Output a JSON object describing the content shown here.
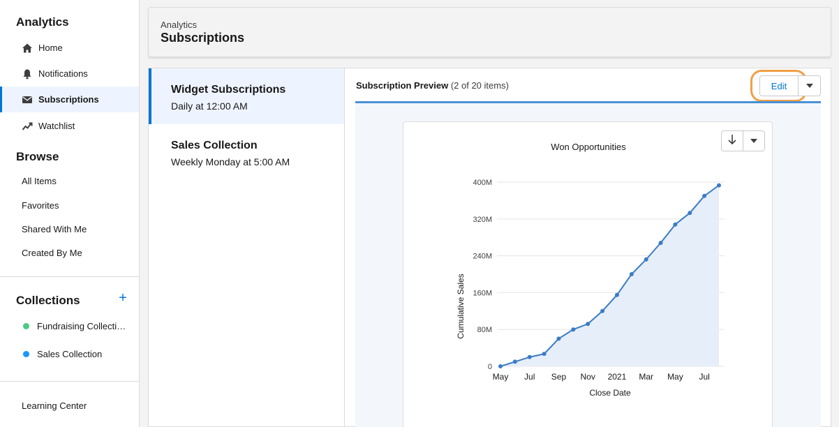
{
  "sidebar": {
    "analytics_title": "Analytics",
    "nav": [
      {
        "label": "Home",
        "icon": "home-icon"
      },
      {
        "label": "Notifications",
        "icon": "bell-icon"
      },
      {
        "label": "Subscriptions",
        "icon": "envelope-icon",
        "active": true
      },
      {
        "label": "Watchlist",
        "icon": "trend-icon"
      }
    ],
    "browse_title": "Browse",
    "browse": [
      "All Items",
      "Favorites",
      "Shared With Me",
      "Created By Me"
    ],
    "collections_title": "Collections",
    "collections": [
      {
        "label": "Fundraising Collecti…",
        "color": "#4bca81"
      },
      {
        "label": "Sales Collection",
        "color": "#1b96ff"
      }
    ],
    "learning_center": "Learning Center"
  },
  "header": {
    "breadcrumb": "Analytics",
    "title": "Subscriptions"
  },
  "subscriptions": [
    {
      "name": "Widget Subscriptions",
      "schedule": "Daily at 12:00 AM"
    },
    {
      "name": "Sales Collection",
      "schedule": "Weekly Monday at 5:00 AM"
    }
  ],
  "preview": {
    "title": "Subscription Preview",
    "count": "(2 of 20 items)",
    "edit_label": "Edit"
  },
  "colors": {
    "accent": "#0176d3",
    "highlight_ring": "#f0a045",
    "line": "#3a7cc4",
    "area": "#e6eefa"
  },
  "chart_data": {
    "type": "area",
    "title": "Won Opportunities",
    "xlabel": "Close Date",
    "ylabel": "Cumulative Sales",
    "x_ticks": [
      "May",
      "Jul",
      "Sep",
      "Nov",
      "2021",
      "Mar",
      "May",
      "Jul"
    ],
    "y_ticks": [
      "0",
      "80M",
      "160M",
      "240M",
      "320M",
      "400M"
    ],
    "ylim": [
      0,
      400
    ],
    "y_unit": "M",
    "grid": true,
    "series": [
      {
        "values": [
          0,
          10,
          20,
          27,
          60,
          80,
          92,
          120,
          155,
          200,
          232,
          268,
          308,
          333,
          370,
          393
        ]
      }
    ]
  }
}
